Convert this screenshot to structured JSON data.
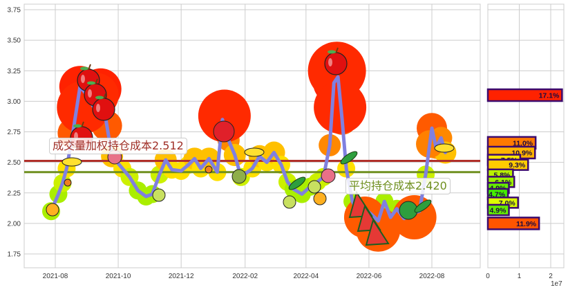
{
  "chart_data": [
    {
      "type": "line",
      "title": "",
      "xlabel": "",
      "ylabel": "",
      "ylim": [
        1.63,
        3.8
      ],
      "yticks": [
        "1.75",
        "2.00",
        "2.25",
        "2.50",
        "2.75",
        "3.00",
        "3.25",
        "3.50",
        "3.75"
      ],
      "xticks": [
        "2021-08",
        "2021-10",
        "2021-12",
        "2022-02",
        "2022-04",
        "2022-06",
        "2022-08"
      ],
      "grid": true,
      "series": [
        {
          "name": "price",
          "color": "#8080e0",
          "points": [
            [
              "2021-07-28",
              2.1
            ],
            [
              "2021-08-04",
              2.24
            ],
            [
              "2021-08-08",
              2.33
            ],
            [
              "2021-08-12",
              2.45
            ],
            [
              "2021-08-18",
              2.74
            ],
            [
              "2021-08-25",
              3.12
            ],
            [
              "2021-09-01",
              3.05
            ],
            [
              "2021-09-08",
              2.94
            ],
            [
              "2021-09-14",
              3.1
            ],
            [
              "2021-09-20",
              2.8
            ],
            [
              "2021-09-25",
              2.55
            ],
            [
              "2021-10-05",
              2.45
            ],
            [
              "2021-10-12",
              2.38
            ],
            [
              "2021-10-20",
              2.27
            ],
            [
              "2021-10-28",
              2.22
            ],
            [
              "2021-11-03",
              2.24
            ],
            [
              "2021-11-10",
              2.4
            ],
            [
              "2021-11-16",
              2.52
            ],
            [
              "2021-11-22",
              2.44
            ],
            [
              "2021-12-01",
              2.43
            ],
            [
              "2021-12-08",
              2.48
            ],
            [
              "2021-12-14",
              2.53
            ],
            [
              "2021-12-20",
              2.45
            ],
            [
              "2021-12-28",
              2.53
            ],
            [
              "2022-01-05",
              2.42
            ],
            [
              "2022-01-10",
              2.85
            ],
            [
              "2022-01-16",
              2.68
            ],
            [
              "2022-01-22",
              2.56
            ],
            [
              "2022-01-28",
              2.38
            ],
            [
              "2022-02-08",
              2.45
            ],
            [
              "2022-02-15",
              2.55
            ],
            [
              "2022-02-22",
              2.5
            ],
            [
              "2022-03-01",
              2.58
            ],
            [
              "2022-03-08",
              2.48
            ],
            [
              "2022-03-14",
              2.34
            ],
            [
              "2022-03-20",
              2.28
            ],
            [
              "2022-03-28",
              2.24
            ],
            [
              "2022-04-05",
              2.3
            ],
            [
              "2022-04-12",
              2.34
            ],
            [
              "2022-04-18",
              2.38
            ],
            [
              "2022-04-24",
              2.64
            ],
            [
              "2022-04-28",
              3.15
            ],
            [
              "2022-05-02",
              3.2
            ],
            [
              "2022-05-06",
              2.85
            ],
            [
              "2022-05-10",
              2.45
            ],
            [
              "2022-05-16",
              2.18
            ],
            [
              "2022-05-22",
              2.08
            ],
            [
              "2022-05-28",
              2.12
            ],
            [
              "2022-06-04",
              2.07
            ],
            [
              "2022-06-10",
              2.02
            ],
            [
              "2022-06-16",
              2.18
            ],
            [
              "2022-06-22",
              2.05
            ],
            [
              "2022-06-28",
              2.12
            ],
            [
              "2022-07-05",
              2.04
            ],
            [
              "2022-07-12",
              2.08
            ],
            [
              "2022-07-20",
              2.1
            ],
            [
              "2022-07-26",
              2.4
            ],
            [
              "2022-08-01",
              2.78
            ],
            [
              "2022-08-05",
              2.62
            ],
            [
              "2022-08-10",
              2.7
            ],
            [
              "2022-08-14",
              2.58
            ]
          ]
        }
      ],
      "hlines": [
        {
          "name": "volume-weighted-cost",
          "value": 2.512,
          "color": "#b0302a"
        },
        {
          "name": "average-cost",
          "value": 2.42,
          "color": "#6f8f1f"
        }
      ],
      "annotations": [
        {
          "text": "成交量加权持仓成本2.512",
          "value": 2.512,
          "color": "#a03028"
        },
        {
          "text": "平均持仓成本2.420",
          "value": 2.42,
          "color": "#6f8f1f"
        }
      ]
    },
    {
      "type": "bar",
      "orientation": "horizontal",
      "xlabel": "",
      "xticks": [
        "0",
        "1",
        "2"
      ],
      "x_scale_label": "1e7",
      "grid": true,
      "bars": [
        {
          "price": 3.05,
          "value": 2.36,
          "label": "17.1%",
          "color": "#ff2200"
        },
        {
          "price": 2.66,
          "value": 1.52,
          "label": "11.0%",
          "color": "#ff7a00"
        },
        {
          "price": 2.58,
          "value": 1.5,
          "label": "10.9%",
          "color": "#ffb300"
        },
        {
          "price": 2.52,
          "value": 1.03,
          "label": "7.5%",
          "color": "#ffe600"
        },
        {
          "price": 2.48,
          "value": 1.28,
          "label": "9.3%",
          "color": "#ffcc00"
        },
        {
          "price": 2.4,
          "value": 0.8,
          "label": "5.8%",
          "color": "#b8f000"
        },
        {
          "price": 2.34,
          "value": 0.84,
          "label": "6.1%",
          "color": "#9ef000"
        },
        {
          "price": 2.29,
          "value": 0.67,
          "label": "4.9%",
          "color": "#66ee00"
        },
        {
          "price": 2.24,
          "value": 0.64,
          "label": "4.7%",
          "color": "#44ee00"
        },
        {
          "price": 2.17,
          "value": 0.96,
          "label": "7.0%",
          "color": "#ddff00"
        },
        {
          "price": 2.11,
          "value": 0.67,
          "label": "4.9%",
          "color": "#66ee00"
        },
        {
          "price": 2.0,
          "value": 1.63,
          "label": "11.9%",
          "color": "#ff5500"
        }
      ]
    }
  ],
  "labels": {
    "weighted_cost": "成交量加权持仓成本2.512",
    "average_cost": "平均持仓成本2.420",
    "hist_scale": "1e7"
  },
  "colors": {
    "price_line": "#8080e0",
    "weighted_cost_line": "#b0302a",
    "average_cost_line": "#6f8f1f",
    "bar_edge": "#3c0a6e",
    "grid": "#cccccc"
  }
}
